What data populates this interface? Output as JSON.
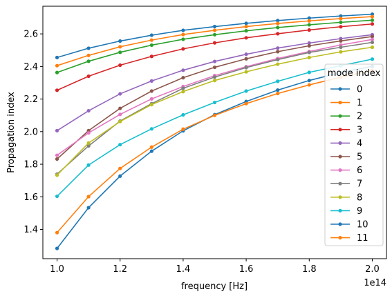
{
  "chart_data": {
    "type": "line",
    "xlabel": "frequency [Hz]",
    "ylabel": "Propagation index",
    "x_offset_label": "1e14",
    "x": [
      1.0,
      1.1,
      1.2,
      1.3,
      1.4,
      1.5,
      1.6,
      1.7,
      1.8,
      1.9,
      2.0
    ],
    "xlim": [
      0.955,
      2.045
    ],
    "ylim": [
      1.22,
      2.77
    ],
    "xticks": [
      "1.0",
      "1.2",
      "1.4",
      "1.6",
      "1.8",
      "2.0"
    ],
    "yticks": [
      "1.4",
      "1.6",
      "1.8",
      "2.0",
      "2.2",
      "2.4",
      "2.6"
    ],
    "grid": false,
    "legend": {
      "title": "mode index",
      "placement": "right"
    },
    "series": [
      {
        "name": "0",
        "color": "#1f77b4",
        "values": [
          2.455,
          2.512,
          2.556,
          2.592,
          2.622,
          2.645,
          2.665,
          2.682,
          2.697,
          2.71,
          2.721
        ]
      },
      {
        "name": "1",
        "color": "#ff7f0e",
        "values": [
          2.405,
          2.468,
          2.521,
          2.562,
          2.596,
          2.622,
          2.645,
          2.664,
          2.68,
          2.694,
          2.706
        ]
      },
      {
        "name": "2",
        "color": "#2ca02c",
        "values": [
          2.363,
          2.432,
          2.487,
          2.531,
          2.567,
          2.595,
          2.619,
          2.639,
          2.656,
          2.671,
          2.684
        ]
      },
      {
        "name": "3",
        "color": "#d62728",
        "values": [
          2.254,
          2.34,
          2.408,
          2.462,
          2.508,
          2.545,
          2.576,
          2.601,
          2.624,
          2.644,
          2.661
        ]
      },
      {
        "name": "4",
        "color": "#9467bd",
        "values": [
          2.006,
          2.128,
          2.232,
          2.311,
          2.377,
          2.431,
          2.475,
          2.513,
          2.544,
          2.571,
          2.595
        ]
      },
      {
        "name": "5",
        "color": "#8c564b",
        "values": [
          1.832,
          2.006,
          2.143,
          2.249,
          2.331,
          2.395,
          2.447,
          2.491,
          2.527,
          2.557,
          2.584
        ]
      },
      {
        "name": "6",
        "color": "#e377c2",
        "values": [
          1.855,
          1.992,
          2.106,
          2.201,
          2.277,
          2.344,
          2.399,
          2.449,
          2.492,
          2.532,
          2.566
        ]
      },
      {
        "name": "7",
        "color": "#7f7f7f",
        "values": [
          1.739,
          1.912,
          2.065,
          2.172,
          2.266,
          2.335,
          2.393,
          2.442,
          2.486,
          2.518,
          2.548
        ]
      },
      {
        "name": "8",
        "color": "#bcbd22",
        "values": [
          1.733,
          1.93,
          2.062,
          2.166,
          2.246,
          2.314,
          2.367,
          2.414,
          2.455,
          2.49,
          2.518
        ]
      },
      {
        "name": "9",
        "color": "#17becf",
        "values": [
          1.603,
          1.795,
          1.92,
          2.017,
          2.103,
          2.179,
          2.249,
          2.309,
          2.364,
          2.405,
          2.445
        ]
      },
      {
        "name": "10",
        "color": "#1f77b4",
        "values": [
          1.283,
          1.533,
          1.727,
          1.88,
          2.005,
          2.104,
          2.185,
          2.255,
          2.314,
          2.363,
          2.401
        ]
      },
      {
        "name": "11",
        "color": "#ff7f0e",
        "values": [
          1.38,
          1.601,
          1.774,
          1.905,
          2.015,
          2.1,
          2.172,
          2.234,
          2.287,
          2.334,
          2.376
        ]
      }
    ]
  }
}
